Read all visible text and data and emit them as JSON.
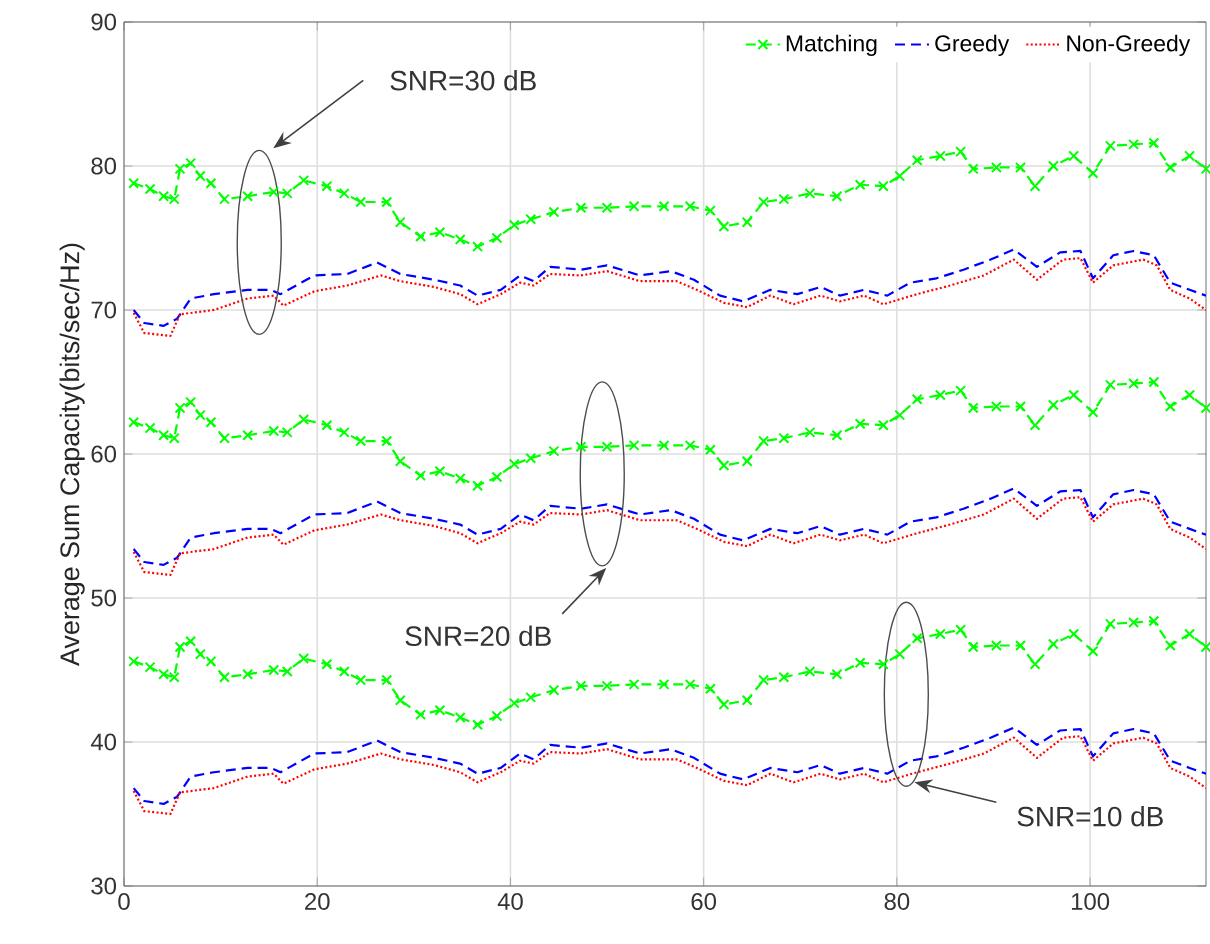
{
  "chart_data": {
    "type": "line",
    "ylabel": "Average Sum Capacity(bits/sec/Hz)",
    "xlim": [
      0,
      112
    ],
    "ylim": [
      30,
      90
    ],
    "xticks": [
      0,
      20,
      40,
      60,
      80,
      100
    ],
    "yticks": [
      30,
      40,
      50,
      60,
      70,
      80,
      90
    ],
    "grid": true,
    "legend": "top right",
    "annotations": [
      "SNR=30 dB",
      "SNR=20 dB",
      "SNR=10 dB"
    ],
    "series": [
      {
        "name": "Matching",
        "color": "#00ff00",
        "marker": "cross",
        "line_style": "dashed",
        "x": [
          1,
          2.7,
          4.1,
          5.2,
          5.8,
          6.9,
          7.9,
          9,
          10.4,
          12.8,
          15.5,
          16.9,
          18.6,
          21,
          22.8,
          24.5,
          27.2,
          28.6,
          30.7,
          32.7,
          34.8,
          36.6,
          38.6,
          40.4,
          42.1,
          44.5,
          47.3,
          50,
          52.8,
          55.9,
          58.6,
          60.7,
          62.1,
          64.5,
          66.2,
          68.3,
          71,
          73.8,
          76.2,
          78.6,
          80.3,
          82.1,
          84.5,
          86.6,
          87.9,
          90.3,
          92.8,
          94.3,
          96.2,
          98.3,
          100.3,
          102.1,
          104.5,
          106.6,
          108.3,
          110.3,
          112
        ],
        "values": [
          78.8,
          78.4,
          77.9,
          77.7,
          79.8,
          80.2,
          79.3,
          78.8,
          77.7,
          77.9,
          78.2,
          78.1,
          79.0,
          78.6,
          78.1,
          77.5,
          77.5,
          76.1,
          75.1,
          75.4,
          74.9,
          74.4,
          75.0,
          75.9,
          76.3,
          76.8,
          77.1,
          77.1,
          77.2,
          77.2,
          77.2,
          76.9,
          75.8,
          76.1,
          77.5,
          77.7,
          78.1,
          77.9,
          78.7,
          78.6,
          79.3,
          80.4,
          80.7,
          81.0,
          79.8,
          79.9,
          79.9,
          78.6,
          80.0,
          80.7,
          79.5,
          81.4,
          81.5,
          81.6,
          79.9,
          80.7,
          79.8
        ]
      },
      {
        "name": "Greedy",
        "color": "#0000ff",
        "marker": "none",
        "line_style": "dashed",
        "x": [
          1,
          2.1,
          4.1,
          5.5,
          6.9,
          9.3,
          12.8,
          15.2,
          16.2,
          19.7,
          23.1,
          26.2,
          28.6,
          32.1,
          34.8,
          36.6,
          39,
          41,
          42.4,
          44.1,
          47.3,
          50,
          53.4,
          56.6,
          59,
          61.7,
          64.1,
          66.9,
          69.7,
          72.1,
          74.1,
          76.6,
          79,
          81.4,
          84.1,
          86.9,
          89.7,
          92.1,
          94.5,
          96.9,
          99,
          100.3,
          102.4,
          104.5,
          106.6,
          108.3,
          110.3,
          112
        ],
        "values": [
          70.0,
          69.1,
          68.9,
          69.4,
          70.8,
          71.1,
          71.4,
          71.4,
          71.1,
          72.4,
          72.5,
          73.3,
          72.5,
          72.1,
          71.7,
          71.0,
          71.4,
          72.4,
          72.0,
          73.0,
          72.8,
          73.1,
          72.4,
          72.7,
          72.1,
          71.0,
          70.6,
          71.4,
          71.1,
          71.6,
          71.0,
          71.4,
          71.0,
          71.9,
          72.2,
          72.8,
          73.5,
          74.2,
          73.0,
          74.0,
          74.1,
          72.2,
          73.8,
          74.1,
          73.8,
          71.9,
          71.4,
          71.0
        ]
      },
      {
        "name": "Non-Greedy",
        "color": "#ff0000",
        "marker": "none",
        "line_style": "dotted",
        "x": [
          1,
          2.1,
          4.8,
          5.8,
          9.3,
          12.8,
          15.5,
          16.5,
          19.7,
          23.1,
          26.6,
          28.6,
          32.1,
          34.8,
          36.6,
          39,
          41,
          42.4,
          44.1,
          47.3,
          50,
          53.4,
          57.2,
          59.3,
          62.1,
          64.5,
          66.9,
          69.3,
          72.1,
          74.1,
          76.6,
          78.6,
          82.1,
          85.5,
          89,
          92.1,
          94.5,
          97.2,
          99,
          100.3,
          102.4,
          105.5,
          106.9,
          108.3,
          110.3,
          112
        ],
        "values": [
          69.8,
          68.4,
          68.2,
          69.7,
          70.0,
          70.8,
          71.0,
          70.3,
          71.3,
          71.7,
          72.4,
          72.0,
          71.6,
          71.1,
          70.4,
          71.1,
          71.9,
          71.7,
          72.5,
          72.4,
          72.7,
          72.0,
          72.0,
          71.4,
          70.5,
          70.2,
          71.0,
          70.4,
          71.0,
          70.6,
          71.0,
          70.4,
          71.1,
          71.7,
          72.4,
          73.5,
          72.1,
          73.5,
          73.6,
          71.9,
          73.1,
          73.5,
          73.1,
          71.4,
          70.8,
          70.0
        ]
      },
      {
        "color": "#00ff00",
        "marker": "cross",
        "line_style": "dashed",
        "x": [
          1,
          2.7,
          4.1,
          5.2,
          5.8,
          6.9,
          7.9,
          9,
          10.4,
          12.8,
          15.5,
          16.9,
          18.6,
          21,
          22.8,
          24.5,
          27.2,
          28.6,
          30.7,
          32.7,
          34.8,
          36.6,
          38.6,
          40.4,
          42.1,
          44.5,
          47.3,
          50,
          52.8,
          55.9,
          58.6,
          60.7,
          62.1,
          64.5,
          66.2,
          68.3,
          71,
          73.8,
          76.2,
          78.6,
          80.3,
          82.1,
          84.5,
          86.6,
          87.9,
          90.3,
          92.8,
          94.3,
          96.2,
          98.3,
          100.3,
          102.1,
          104.5,
          106.6,
          108.3,
          110.3,
          112
        ],
        "values": [
          62.2,
          61.8,
          61.3,
          61.1,
          63.2,
          63.6,
          62.7,
          62.2,
          61.1,
          61.3,
          61.6,
          61.5,
          62.4,
          62.0,
          61.5,
          60.9,
          60.9,
          59.5,
          58.5,
          58.8,
          58.3,
          57.8,
          58.4,
          59.3,
          59.7,
          60.2,
          60.5,
          60.5,
          60.6,
          60.6,
          60.6,
          60.3,
          59.2,
          59.5,
          60.9,
          61.1,
          61.5,
          61.3,
          62.1,
          62.0,
          62.7,
          63.8,
          64.1,
          64.4,
          63.2,
          63.3,
          63.3,
          62.0,
          63.4,
          64.1,
          62.9,
          64.8,
          64.9,
          65.0,
          63.3,
          64.1,
          63.2
        ]
      },
      {
        "color": "#0000ff",
        "marker": "none",
        "line_style": "dashed",
        "x": [
          1,
          2.1,
          4.1,
          5.5,
          6.9,
          9.3,
          12.8,
          15.2,
          16.2,
          19.7,
          23.1,
          26.2,
          28.6,
          32.1,
          34.8,
          36.6,
          39,
          41,
          42.4,
          44.1,
          47.3,
          50,
          53.4,
          56.6,
          59,
          61.7,
          64.1,
          66.9,
          69.7,
          72.1,
          74.1,
          76.6,
          79,
          81.4,
          84.1,
          86.9,
          89.7,
          92.1,
          94.5,
          96.9,
          99,
          100.3,
          102.4,
          104.5,
          106.6,
          108.3,
          110.3,
          112
        ],
        "values": [
          53.4,
          52.5,
          52.3,
          52.8,
          54.2,
          54.5,
          54.8,
          54.8,
          54.5,
          55.8,
          55.9,
          56.7,
          55.9,
          55.5,
          55.1,
          54.4,
          54.8,
          55.8,
          55.4,
          56.4,
          56.2,
          56.5,
          55.8,
          56.1,
          55.5,
          54.4,
          54.0,
          54.8,
          54.5,
          55.0,
          54.4,
          54.8,
          54.4,
          55.3,
          55.6,
          56.2,
          56.9,
          57.6,
          56.4,
          57.4,
          57.5,
          55.6,
          57.2,
          57.5,
          57.2,
          55.3,
          54.8,
          54.4
        ]
      },
      {
        "color": "#ff0000",
        "marker": "none",
        "line_style": "dotted",
        "x": [
          1,
          2.1,
          4.8,
          5.8,
          9.3,
          12.8,
          15.5,
          16.5,
          19.7,
          23.1,
          26.6,
          28.6,
          32.1,
          34.8,
          36.6,
          39,
          41,
          42.4,
          44.1,
          47.3,
          50,
          53.4,
          57.2,
          59.3,
          62.1,
          64.5,
          66.9,
          69.3,
          72.1,
          74.1,
          76.6,
          78.6,
          82.1,
          85.5,
          89,
          92.1,
          94.5,
          97.2,
          99,
          100.3,
          102.4,
          105.5,
          106.9,
          108.3,
          110.3,
          112
        ],
        "values": [
          53.2,
          51.8,
          51.6,
          53.1,
          53.4,
          54.2,
          54.4,
          53.7,
          54.7,
          55.1,
          55.8,
          55.4,
          55.0,
          54.5,
          53.8,
          54.5,
          55.3,
          55.1,
          55.9,
          55.8,
          56.1,
          55.4,
          55.4,
          54.8,
          53.9,
          53.6,
          54.4,
          53.8,
          54.4,
          54.0,
          54.4,
          53.8,
          54.5,
          55.1,
          55.8,
          56.9,
          55.5,
          56.9,
          57.0,
          55.3,
          56.5,
          56.9,
          56.5,
          54.8,
          54.2,
          53.4
        ]
      },
      {
        "color": "#00ff00",
        "marker": "cross",
        "line_style": "dashed",
        "x": [
          1,
          2.7,
          4.1,
          5.2,
          5.8,
          6.9,
          7.9,
          9,
          10.4,
          12.8,
          15.5,
          16.9,
          18.6,
          21,
          22.8,
          24.5,
          27.2,
          28.6,
          30.7,
          32.7,
          34.8,
          36.6,
          38.6,
          40.4,
          42.1,
          44.5,
          47.3,
          50,
          52.8,
          55.9,
          58.6,
          60.7,
          62.1,
          64.5,
          66.2,
          68.3,
          71,
          73.8,
          76.2,
          78.6,
          80.3,
          82.1,
          84.5,
          86.6,
          87.9,
          90.3,
          92.8,
          94.3,
          96.2,
          98.3,
          100.3,
          102.1,
          104.5,
          106.6,
          108.3,
          110.3,
          112
        ],
        "values": [
          45.6,
          45.2,
          44.7,
          44.5,
          46.6,
          47.0,
          46.1,
          45.6,
          44.5,
          44.7,
          45.0,
          44.9,
          45.8,
          45.4,
          44.9,
          44.3,
          44.3,
          42.9,
          41.9,
          42.2,
          41.7,
          41.2,
          41.8,
          42.7,
          43.1,
          43.6,
          43.9,
          43.9,
          44.0,
          44.0,
          44.0,
          43.7,
          42.6,
          42.9,
          44.3,
          44.5,
          44.9,
          44.7,
          45.5,
          45.4,
          46.1,
          47.2,
          47.5,
          47.8,
          46.6,
          46.7,
          46.7,
          45.4,
          46.8,
          47.5,
          46.3,
          48.2,
          48.3,
          48.4,
          46.7,
          47.5,
          46.6
        ]
      },
      {
        "color": "#0000ff",
        "marker": "none",
        "line_style": "dashed",
        "x": [
          1,
          2.1,
          4.1,
          5.5,
          6.9,
          9.3,
          12.8,
          15.2,
          16.2,
          19.7,
          23.1,
          26.2,
          28.6,
          32.1,
          34.8,
          36.6,
          39,
          41,
          42.4,
          44.1,
          47.3,
          50,
          53.4,
          56.6,
          59,
          61.7,
          64.1,
          66.9,
          69.7,
          72.1,
          74.1,
          76.6,
          79,
          81.4,
          84.1,
          86.9,
          89.7,
          92.1,
          94.5,
          96.9,
          99,
          100.3,
          102.4,
          104.5,
          106.6,
          108.3,
          110.3,
          112
        ],
        "values": [
          36.8,
          35.9,
          35.7,
          36.2,
          37.6,
          37.9,
          38.2,
          38.2,
          37.9,
          39.2,
          39.3,
          40.1,
          39.3,
          38.9,
          38.5,
          37.8,
          38.2,
          39.2,
          38.8,
          39.8,
          39.6,
          39.9,
          39.2,
          39.5,
          38.9,
          37.8,
          37.4,
          38.2,
          37.9,
          38.4,
          37.8,
          38.2,
          37.8,
          38.7,
          39.0,
          39.6,
          40.3,
          41.0,
          39.8,
          40.8,
          40.9,
          39.0,
          40.6,
          40.9,
          40.6,
          38.7,
          38.2,
          37.8
        ]
      },
      {
        "color": "#ff0000",
        "marker": "none",
        "line_style": "dotted",
        "x": [
          1,
          2.1,
          4.8,
          5.8,
          9.3,
          12.8,
          15.5,
          16.5,
          19.7,
          23.1,
          26.6,
          28.6,
          32.1,
          34.8,
          36.6,
          39,
          41,
          42.4,
          44.1,
          47.3,
          50,
          53.4,
          57.2,
          59.3,
          62.1,
          64.5,
          66.9,
          69.3,
          72.1,
          74.1,
          76.6,
          78.6,
          82.1,
          85.5,
          89,
          92.1,
          94.5,
          97.2,
          99,
          100.3,
          102.4,
          105.5,
          106.9,
          108.3,
          110.3,
          112
        ],
        "values": [
          36.6,
          35.2,
          35.0,
          36.5,
          36.8,
          37.6,
          37.8,
          37.1,
          38.1,
          38.5,
          39.2,
          38.8,
          38.4,
          37.9,
          37.2,
          37.9,
          38.7,
          38.5,
          39.3,
          39.2,
          39.5,
          38.8,
          38.8,
          38.2,
          37.3,
          37.0,
          37.8,
          37.2,
          37.8,
          37.4,
          37.8,
          37.2,
          37.9,
          38.5,
          39.2,
          40.3,
          38.9,
          40.3,
          40.4,
          38.7,
          39.9,
          40.3,
          39.9,
          38.2,
          37.6,
          36.8
        ]
      }
    ]
  }
}
